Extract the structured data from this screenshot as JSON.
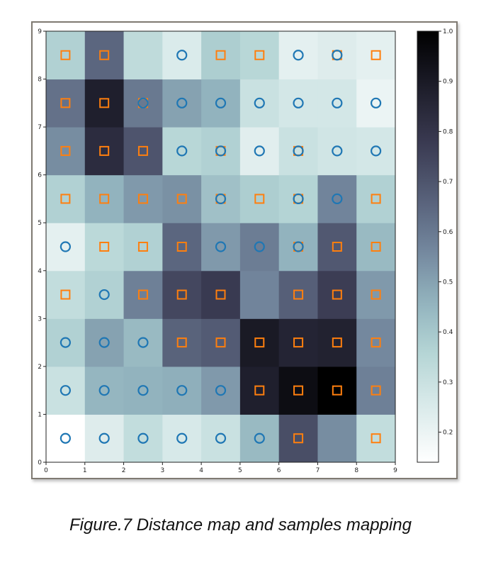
{
  "caption": "Figure.7 Distance map and samples mapping",
  "chart_data": {
    "type": "heatmap",
    "xlim": [
      0,
      9
    ],
    "ylim": [
      0,
      9
    ],
    "x_ticks": [
      "0",
      "1",
      "2",
      "3",
      "4",
      "5",
      "6",
      "7",
      "8",
      "9"
    ],
    "y_ticks": [
      "0",
      "1",
      "2",
      "3",
      "4",
      "5",
      "6",
      "7",
      "8",
      "9"
    ],
    "colorbar": {
      "range": [
        0.14,
        1.0
      ],
      "ticks": [
        "0.2",
        "0.3",
        "0.4",
        "0.5",
        "0.6",
        "0.7",
        "0.8",
        "0.9",
        "1.0"
      ],
      "tick_values": [
        0.2,
        0.3,
        0.4,
        0.5,
        0.6,
        0.7,
        0.8,
        0.9,
        1.0
      ],
      "colormap": "bone_r"
    },
    "marker_colors": {
      "circle": "#1f77b4",
      "square": "#ff7f0e"
    },
    "rows_bottom_to_top": [
      [
        0.14,
        0.24,
        0.32,
        0.26,
        0.3,
        0.44,
        0.72,
        0.55,
        0.32
      ],
      [
        0.3,
        0.45,
        0.46,
        0.47,
        0.52,
        0.88,
        0.95,
        1.0,
        0.58
      ],
      [
        0.37,
        0.5,
        0.44,
        0.66,
        0.68,
        0.9,
        0.86,
        0.87,
        0.56
      ],
      [
        0.32,
        0.37,
        0.58,
        0.74,
        0.78,
        0.57,
        0.67,
        0.77,
        0.52
      ],
      [
        0.22,
        0.34,
        0.37,
        0.65,
        0.52,
        0.59,
        0.46,
        0.69,
        0.44
      ],
      [
        0.37,
        0.46,
        0.52,
        0.54,
        0.42,
        0.38,
        0.36,
        0.57,
        0.37
      ],
      [
        0.55,
        0.83,
        0.7,
        0.35,
        0.37,
        0.23,
        0.3,
        0.28,
        0.27
      ],
      [
        0.62,
        0.88,
        0.6,
        0.5,
        0.46,
        0.3,
        0.27,
        0.27,
        0.2
      ],
      [
        0.37,
        0.65,
        0.33,
        0.25,
        0.38,
        0.35,
        0.22,
        0.24,
        0.22
      ]
    ],
    "markers_bottom_to_top": [
      [
        "o",
        "o",
        "o",
        "o",
        "o",
        "o",
        "s",
        "",
        "s"
      ],
      [
        "o",
        "o",
        "o",
        "o",
        "o",
        "s",
        "s",
        "s",
        "s"
      ],
      [
        "o",
        "o",
        "o",
        "s",
        "s",
        "s",
        "s",
        "s",
        "s"
      ],
      [
        "s",
        "o",
        "s",
        "s",
        "s",
        "",
        "s",
        "s",
        "s"
      ],
      [
        "o",
        "s",
        "s",
        "s",
        "o",
        "o",
        "so",
        "s",
        "s"
      ],
      [
        "s",
        "s",
        "s",
        "s",
        "so",
        "s",
        "so",
        "o",
        "s"
      ],
      [
        "s",
        "s",
        "s",
        "o",
        "so",
        "o",
        "so",
        "o",
        "o"
      ],
      [
        "s",
        "s",
        "so",
        "o",
        "o",
        "o",
        "o",
        "o",
        "o"
      ],
      [
        "s",
        "s",
        "",
        "o",
        "s",
        "s",
        "o",
        "so",
        "s"
      ]
    ]
  }
}
